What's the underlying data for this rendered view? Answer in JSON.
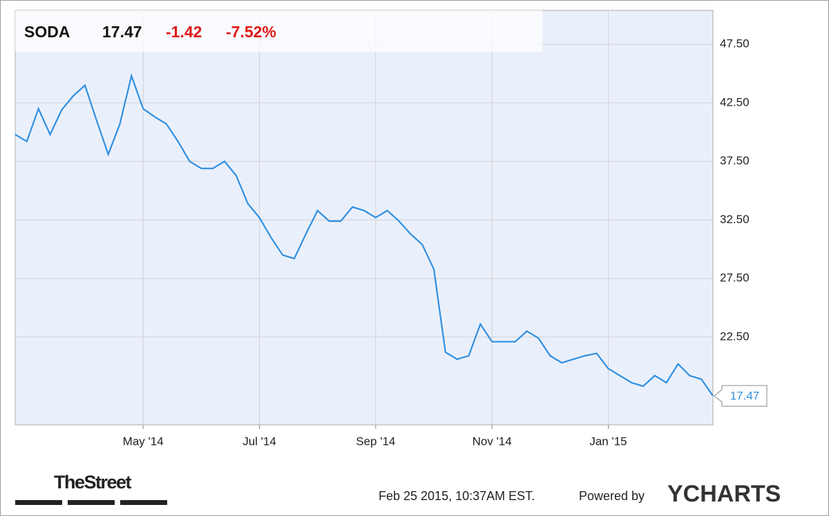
{
  "chart_data": {
    "type": "line",
    "ticker": "SODA",
    "change": -1.42,
    "change_pct": "-7.52%",
    "categories": [
      null,
      null,
      null,
      null,
      null,
      null,
      null,
      null,
      null,
      null,
      null,
      "May '14",
      null,
      null,
      null,
      null,
      null,
      null,
      null,
      null,
      null,
      "Jul '14",
      null,
      null,
      null,
      null,
      null,
      null,
      null,
      null,
      null,
      "Sep '14",
      null,
      null,
      null,
      null,
      null,
      null,
      null,
      null,
      null,
      "Nov '14",
      null,
      null,
      null,
      null,
      null,
      null,
      null,
      null,
      null,
      "Jan '15",
      null,
      null,
      null,
      null,
      null,
      null,
      null,
      null,
      null
    ],
    "series": [
      {
        "color": "#2f8fe0",
        "values": [
          39.8,
          39.2,
          42.0,
          39.8,
          41.9,
          43.1,
          44.0,
          41.0,
          38.1,
          40.7,
          44.8,
          42.0,
          41.3,
          40.7,
          39.2,
          37.5,
          36.9,
          36.9,
          37.5,
          36.3,
          33.9,
          32.7,
          31.0,
          29.5,
          29.2,
          31.3,
          33.3,
          32.4,
          32.4,
          33.6,
          33.3,
          32.7,
          33.3,
          32.4,
          31.3,
          30.4,
          28.3,
          21.2,
          20.6,
          20.9,
          23.6,
          22.1,
          22.1,
          22.1,
          23.0,
          22.4,
          20.9,
          20.3,
          20.6,
          20.9,
          21.1,
          19.8,
          19.2,
          18.6,
          18.3,
          19.2,
          18.6,
          20.2,
          19.2,
          18.9,
          17.47
        ]
      }
    ],
    "ylim": [
      15.0,
      50.4
    ],
    "yticks": [
      {
        "value": 22.5,
        "label": "22.50"
      },
      {
        "value": 27.5,
        "label": "27.50"
      },
      {
        "value": 32.5,
        "label": "32.50"
      },
      {
        "value": 37.5,
        "label": "37.50"
      },
      {
        "value": 42.5,
        "label": "42.50"
      },
      {
        "value": 47.5,
        "label": "47.50"
      }
    ],
    "grid": true,
    "timestamp": "Feb 25 2015, 10:37AM EST.",
    "powered_by": "Powered by",
    "brand": "YCHARTS",
    "source_logo": "TheStreet"
  }
}
